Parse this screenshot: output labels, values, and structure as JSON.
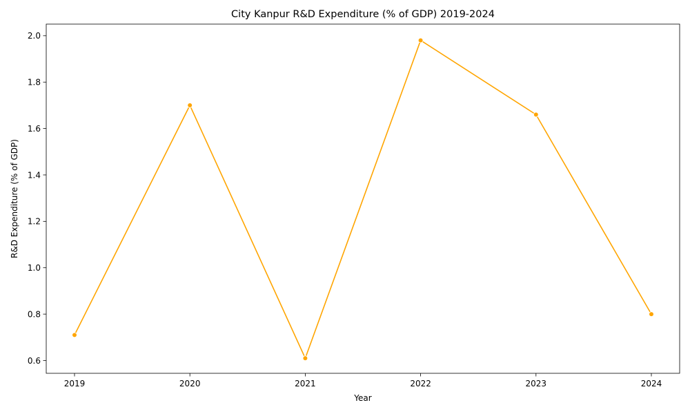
{
  "chart_data": {
    "type": "line",
    "title": "City Kanpur R&D Expenditure (% of GDP) 2019-2024",
    "xlabel": "Year",
    "ylabel": "R&D Expenditure (% of GDP)",
    "x": [
      "2019",
      "2020",
      "2021",
      "2022",
      "2023",
      "2024"
    ],
    "series": [
      {
        "values": [
          0.71,
          1.7,
          0.61,
          1.98,
          1.66,
          0.8
        ],
        "color": "#FFA500",
        "marker": "circle"
      }
    ],
    "yticks": [
      "0.6",
      "0.8",
      "1.0",
      "1.2",
      "1.4",
      "1.6",
      "1.8",
      "2.0"
    ],
    "ylim": [
      0.545,
      2.05
    ],
    "grid": false,
    "legend": "none"
  }
}
